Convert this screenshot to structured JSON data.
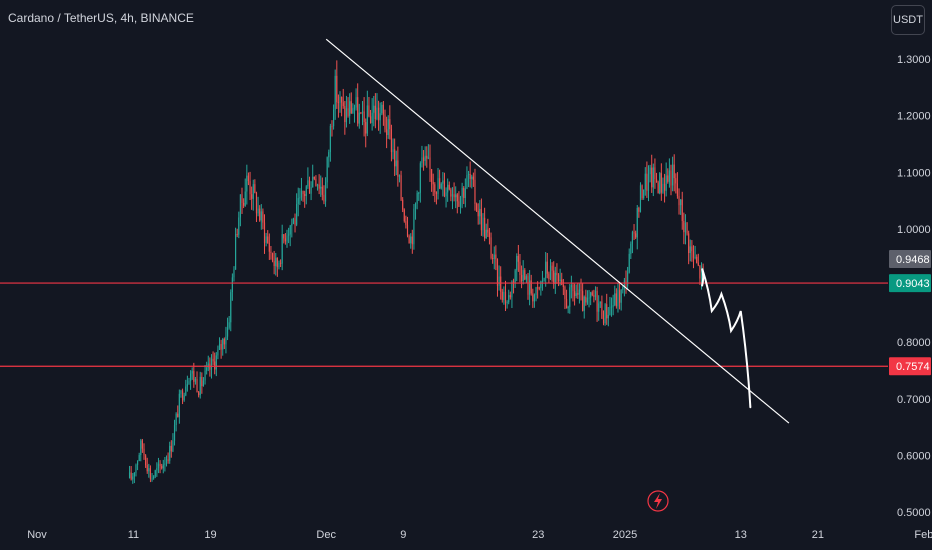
{
  "header": {
    "symbol_title": "Cardano / TetherUS, 4h, BINANCE",
    "currency_label": "USDT"
  },
  "chart_data": {
    "type": "candlestick",
    "title": "Cardano / TetherUS, 4h, BINANCE",
    "ylabel": "USDT",
    "ylim": [
      0.49,
      1.37
    ],
    "x_tick_labels": [
      "Nov",
      "11",
      "19",
      "Dec",
      "9",
      "23",
      "2025",
      "13",
      "21",
      "Feb"
    ],
    "y_tick_labels": [
      "1.3000",
      "1.2000",
      "1.1000",
      "1.0000",
      "0.9000",
      "0.8000",
      "0.7000",
      "0.6000",
      "0.5000"
    ],
    "y_tick_values": [
      1.3,
      1.2,
      1.1,
      1.0,
      0.9,
      0.8,
      0.7,
      0.6,
      0.5
    ],
    "colors": {
      "up": "#26a69a",
      "down": "#ef5350",
      "background": "#131722",
      "text": "#d1d4dc"
    },
    "price_tags": [
      {
        "label": "0.9468",
        "value": 0.9468,
        "color": "#5d606b"
      },
      {
        "label": "0.9043",
        "value": 0.9043,
        "color": "#089981"
      },
      {
        "label": "0.7574",
        "value": 0.7574,
        "color": "#f23645"
      }
    ],
    "horizontal_levels": [
      {
        "value": 0.9043,
        "color": "#f23645"
      },
      {
        "value": 0.7574,
        "color": "#f23645"
      }
    ],
    "trendline": {
      "from": {
        "x": "Dec 1",
        "y": 1.335
      },
      "to": {
        "x": "Jan 18",
        "y": 0.657
      },
      "color": "#ffffff"
    },
    "projection": {
      "color": "#ffffff",
      "points": [
        {
          "x": "Jan 9",
          "y": 0.9
        },
        {
          "x": "Jan 9",
          "y": 0.93
        },
        {
          "x": "Jan 10",
          "y": 0.855
        },
        {
          "x": "Jan 11",
          "y": 0.885
        },
        {
          "x": "Jan 12",
          "y": 0.82
        },
        {
          "x": "Jan 13",
          "y": 0.855
        },
        {
          "x": "Jan 14",
          "y": 0.685
        }
      ]
    },
    "price_path": [
      {
        "x": "Nov 11",
        "y": 0.56
      },
      {
        "x": "Nov 12",
        "y": 0.62
      },
      {
        "x": "Nov 13",
        "y": 0.56
      },
      {
        "x": "Nov 14",
        "y": 0.58
      },
      {
        "x": "Nov 15",
        "y": 0.61
      },
      {
        "x": "Nov 16",
        "y": 0.7
      },
      {
        "x": "Nov 17",
        "y": 0.75
      },
      {
        "x": "Nov 18",
        "y": 0.72
      },
      {
        "x": "Nov 19",
        "y": 0.75
      },
      {
        "x": "Nov 20",
        "y": 0.78
      },
      {
        "x": "Nov 21",
        "y": 0.83
      },
      {
        "x": "Nov 22",
        "y": 1.02
      },
      {
        "x": "Nov 23",
        "y": 1.09
      },
      {
        "x": "Nov 24",
        "y": 1.04
      },
      {
        "x": "Nov 25",
        "y": 0.98
      },
      {
        "x": "Nov 26",
        "y": 0.93
      },
      {
        "x": "Nov 27",
        "y": 1.0
      },
      {
        "x": "Nov 28",
        "y": 1.02
      },
      {
        "x": "Nov 29",
        "y": 1.07
      },
      {
        "x": "Nov 30",
        "y": 1.1
      },
      {
        "x": "Dec 1",
        "y": 1.06
      },
      {
        "x": "Dec 2",
        "y": 1.25
      },
      {
        "x": "Dec 3",
        "y": 1.2
      },
      {
        "x": "Dec 4",
        "y": 1.22
      },
      {
        "x": "Dec 5",
        "y": 1.18
      },
      {
        "x": "Dec 6",
        "y": 1.21
      },
      {
        "x": "Dec 7",
        "y": 1.2
      },
      {
        "x": "Dec 8",
        "y": 1.15
      },
      {
        "x": "Dec 9",
        "y": 1.05
      },
      {
        "x": "Dec 10",
        "y": 0.98
      },
      {
        "x": "Dec 11",
        "y": 1.12
      },
      {
        "x": "Dec 12",
        "y": 1.1
      },
      {
        "x": "Dec 13",
        "y": 1.07
      },
      {
        "x": "Dec 14",
        "y": 1.08
      },
      {
        "x": "Dec 15",
        "y": 1.06
      },
      {
        "x": "Dec 16",
        "y": 1.09
      },
      {
        "x": "Dec 17",
        "y": 1.03
      },
      {
        "x": "Dec 18",
        "y": 0.98
      },
      {
        "x": "Dec 19",
        "y": 0.91
      },
      {
        "x": "Dec 20",
        "y": 0.87
      },
      {
        "x": "Dec 21",
        "y": 0.95
      },
      {
        "x": "Dec 22",
        "y": 0.9
      },
      {
        "x": "Dec 23",
        "y": 0.88
      },
      {
        "x": "Dec 24",
        "y": 0.93
      },
      {
        "x": "Dec 25",
        "y": 0.91
      },
      {
        "x": "Dec 26",
        "y": 0.87
      },
      {
        "x": "Dec 27",
        "y": 0.89
      },
      {
        "x": "Dec 28",
        "y": 0.86
      },
      {
        "x": "Dec 29",
        "y": 0.88
      },
      {
        "x": "Dec 30",
        "y": 0.85
      },
      {
        "x": "Dec 31",
        "y": 0.87
      },
      {
        "x": "Jan 1",
        "y": 0.89
      },
      {
        "x": "Jan 2",
        "y": 0.98
      },
      {
        "x": "Jan 3",
        "y": 1.08
      },
      {
        "x": "Jan 4",
        "y": 1.09
      },
      {
        "x": "Jan 5",
        "y": 1.08
      },
      {
        "x": "Jan 6",
        "y": 1.1
      },
      {
        "x": "Jan 7",
        "y": 1.03
      },
      {
        "x": "Jan 8",
        "y": 0.96
      },
      {
        "x": "Jan 9",
        "y": 0.92
      }
    ]
  }
}
